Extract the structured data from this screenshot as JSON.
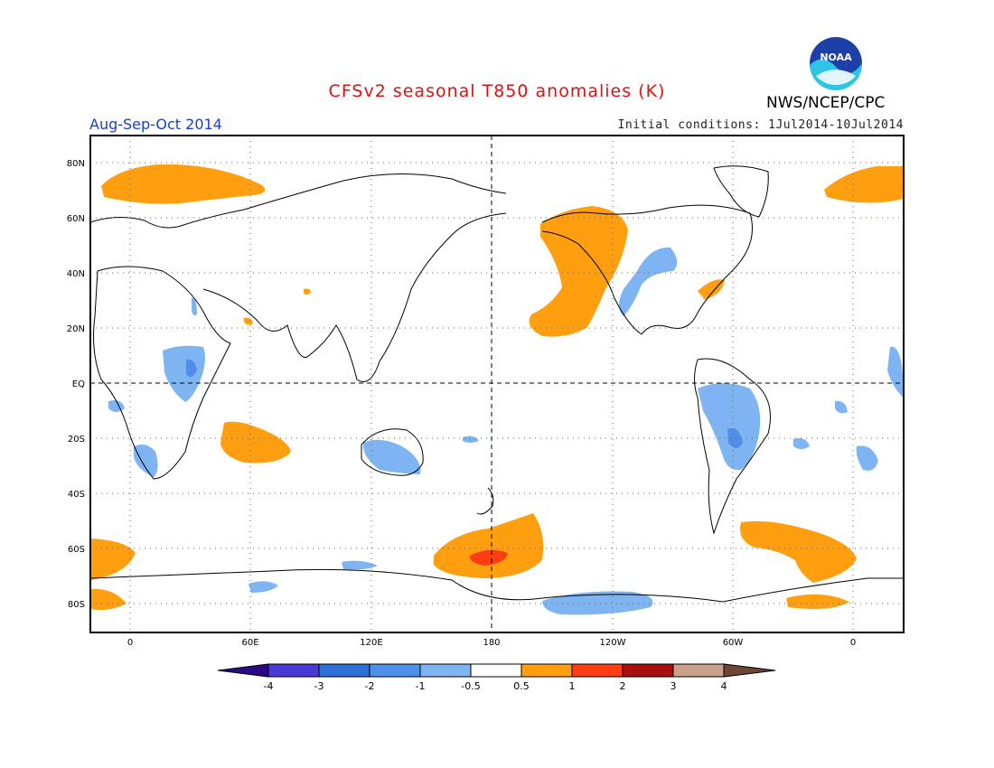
{
  "header": {
    "title": "CFSv2 seasonal T850 anomalies (K)",
    "period": "Aug-Sep-Oct 2014",
    "initial_conditions": "Initial conditions: 1Jul2014-10Jul2014",
    "organization": "NWS/NCEP/CPC",
    "logo_text": "NOAA"
  },
  "map": {
    "lat_labels": [
      "80N",
      "60N",
      "40N",
      "20N",
      "EQ",
      "20S",
      "40S",
      "60S",
      "80S"
    ],
    "lon_labels": [
      "0",
      "60E",
      "120E",
      "180",
      "120W",
      "60W",
      "0"
    ]
  },
  "colorbar": {
    "tick_labels": [
      "-4",
      "-3",
      "-2",
      "-1",
      "-0.5",
      "0.5",
      "1",
      "2",
      "3",
      "4"
    ],
    "colors": [
      "#2a0a8a",
      "#4a3ad6",
      "#2c6fd6",
      "#4d8fea",
      "#7fb4f2",
      "#ffffff",
      "#ff9f0f",
      "#ff3c14",
      "#a81010",
      "#c9a08a",
      "#6e4434"
    ]
  },
  "colors": {
    "warm": "#ff9f0f",
    "warm_strong": "#ff3c14",
    "cool": "#7fb4f2",
    "cool_strong": "#4d8fea"
  }
}
